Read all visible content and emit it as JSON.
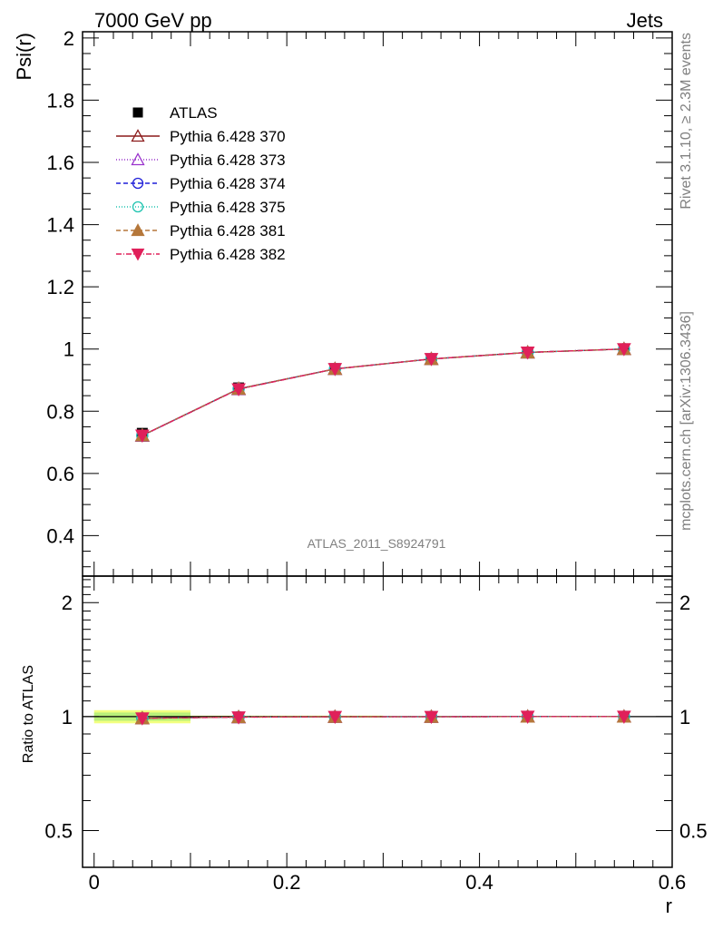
{
  "header": {
    "left": "7000 GeV pp",
    "right": "Jets"
  },
  "side_texts": {
    "rivet": "Rivet 3.1.10, ≥ 2.3M events",
    "mcplots": "mcplots.cern.ch [arXiv:1306.3436]"
  },
  "analysis_label": "ATLAS_2011_S8924791",
  "chart_data": [
    {
      "type": "line",
      "ylabel": "Psi(r)",
      "xlabel": "",
      "xlim": [
        -0.012,
        0.6
      ],
      "ylim": [
        0.27,
        2.02
      ],
      "x_ticks": [
        "0",
        "0.2",
        "0.4",
        "0.6"
      ],
      "y_ticks": [
        {
          "v": 0.4,
          "label": "0.4"
        },
        {
          "v": 0.6,
          "label": "0.6"
        },
        {
          "v": 0.8,
          "label": "0.8"
        },
        {
          "v": 1.0,
          "label": "1"
        },
        {
          "v": 1.2,
          "label": "1.2"
        },
        {
          "v": 1.4,
          "label": "1.4"
        },
        {
          "v": 1.6,
          "label": "1.6"
        },
        {
          "v": 1.8,
          "label": "1.8"
        },
        {
          "v": 2.0,
          "label": "2"
        }
      ],
      "legend_position": "top-left",
      "x": [
        0.05,
        0.15,
        0.25,
        0.35,
        0.45,
        0.55
      ],
      "series": [
        {
          "name": "ATLAS",
          "marker": "square",
          "color": "#000000",
          "values": [
            0.729,
            0.875,
            0.937,
            0.969,
            0.989,
            1.0
          ]
        },
        {
          "name": "Pythia 6.428 370",
          "marker": "triangle-open",
          "color": "#8b1a1a",
          "dash": "",
          "values": [
            0.722,
            0.872,
            0.936,
            0.968,
            0.989,
            1.0
          ]
        },
        {
          "name": "Pythia 6.428 373",
          "marker": "triangle-open",
          "color": "#9932cc",
          "dash": "1,2",
          "values": [
            0.721,
            0.871,
            0.936,
            0.968,
            0.989,
            1.0
          ]
        },
        {
          "name": "Pythia 6.428 374",
          "marker": "circle-open",
          "color": "#1f1fd8",
          "dash": "5,3",
          "values": [
            0.722,
            0.872,
            0.936,
            0.968,
            0.989,
            1.0
          ]
        },
        {
          "name": "Pythia 6.428 375",
          "marker": "circle-open",
          "color": "#20c4b0",
          "dash": "1,2",
          "values": [
            0.722,
            0.872,
            0.936,
            0.968,
            0.989,
            1.0
          ]
        },
        {
          "name": "Pythia 6.428 381",
          "marker": "triangle-filled",
          "color": "#b5773a",
          "dash": "5,3",
          "values": [
            0.722,
            0.872,
            0.936,
            0.968,
            0.989,
            1.0
          ]
        },
        {
          "name": "Pythia 6.428 382",
          "marker": "triangle-down-filled",
          "color": "#e0205a",
          "dash": "6,2,1,2",
          "values": [
            0.722,
            0.871,
            0.936,
            0.968,
            0.989,
            1.0
          ]
        }
      ]
    },
    {
      "type": "line",
      "ylabel": "Ratio to ATLAS",
      "xlabel": "r",
      "xlim": [
        -0.012,
        0.6
      ],
      "ylim": [
        0.4,
        2.35
      ],
      "log_y": true,
      "y_ticks": [
        {
          "v": 0.5,
          "label": "0.5"
        },
        {
          "v": 1.0,
          "label": "1"
        },
        {
          "v": 2.0,
          "label": "2"
        }
      ],
      "x": [
        0.05,
        0.15,
        0.25,
        0.35,
        0.45,
        0.55
      ],
      "bands": [
        {
          "x0": 0.0,
          "x1": 0.1,
          "lo": 0.96,
          "hi": 1.04,
          "color": "#f2ff80"
        },
        {
          "x0": 0.0,
          "x1": 0.1,
          "lo": 0.975,
          "hi": 1.025,
          "color": "#b8f07a"
        },
        {
          "x0": 0.1,
          "x1": 0.3,
          "lo": 0.994,
          "hi": 1.006,
          "color": "#f2ff80"
        }
      ],
      "series": [
        {
          "name": "Pythia 6.428 370",
          "values": [
            0.99,
            0.997,
            0.999,
            0.999,
            1.0,
            1.0
          ]
        },
        {
          "name": "Pythia 6.428 373",
          "values": [
            0.99,
            0.996,
            0.999,
            0.999,
            1.0,
            1.0
          ]
        },
        {
          "name": "Pythia 6.428 374",
          "values": [
            0.99,
            0.997,
            0.999,
            0.999,
            1.0,
            1.0
          ]
        },
        {
          "name": "Pythia 6.428 375",
          "values": [
            0.99,
            0.997,
            0.999,
            0.999,
            1.0,
            1.0
          ]
        },
        {
          "name": "Pythia 6.428 381",
          "values": [
            0.99,
            0.997,
            0.999,
            0.999,
            1.0,
            1.0
          ]
        },
        {
          "name": "Pythia 6.428 382",
          "values": [
            0.99,
            0.996,
            0.999,
            0.999,
            1.0,
            1.0
          ]
        }
      ]
    }
  ]
}
